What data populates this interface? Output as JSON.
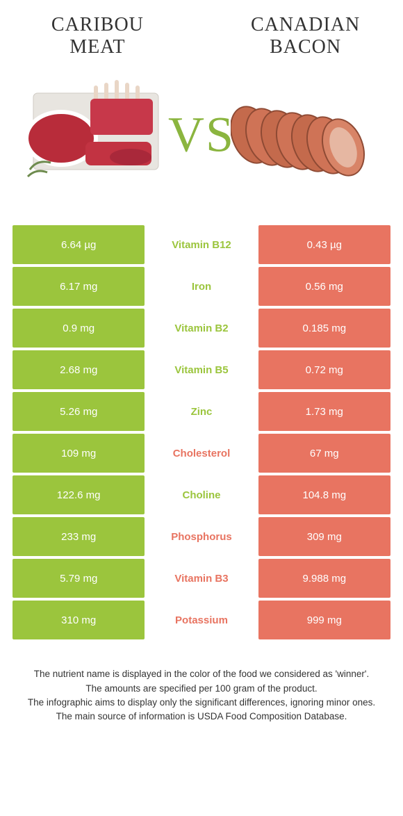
{
  "colors": {
    "green": "#9bc53d",
    "coral": "#e87461",
    "vs": "#8bb53f",
    "text": "#333333"
  },
  "header": {
    "left_title_line1": "CARIBOU",
    "left_title_line2": "MEAT",
    "right_title_line1": "CANADIAN",
    "right_title_line2": "BACON",
    "vs_label": "VS"
  },
  "rows": [
    {
      "left": "6.64 µg",
      "name": "Vitamin B12",
      "right": "0.43 µg",
      "winner": "left"
    },
    {
      "left": "6.17 mg",
      "name": "Iron",
      "right": "0.56 mg",
      "winner": "left"
    },
    {
      "left": "0.9 mg",
      "name": "Vitamin B2",
      "right": "0.185 mg",
      "winner": "left"
    },
    {
      "left": "2.68 mg",
      "name": "Vitamin B5",
      "right": "0.72 mg",
      "winner": "left"
    },
    {
      "left": "5.26 mg",
      "name": "Zinc",
      "right": "1.73 mg",
      "winner": "left"
    },
    {
      "left": "109 mg",
      "name": "Cholesterol",
      "right": "67 mg",
      "winner": "right"
    },
    {
      "left": "122.6 mg",
      "name": "Choline",
      "right": "104.8 mg",
      "winner": "left"
    },
    {
      "left": "233 mg",
      "name": "Phosphorus",
      "right": "309 mg",
      "winner": "right"
    },
    {
      "left": "5.79 mg",
      "name": "Vitamin B3",
      "right": "9.988 mg",
      "winner": "right"
    },
    {
      "left": "310 mg",
      "name": "Potassium",
      "right": "999 mg",
      "winner": "right"
    }
  ],
  "footer": {
    "line1": "The nutrient name is displayed in the color of the food we considered as 'winner'.",
    "line2": "The amounts are specified per 100 gram of the product.",
    "line3": "The infographic aims to display only the significant differences, ignoring minor ones.",
    "line4": "The main source of information is USDA Food Composition Database."
  }
}
